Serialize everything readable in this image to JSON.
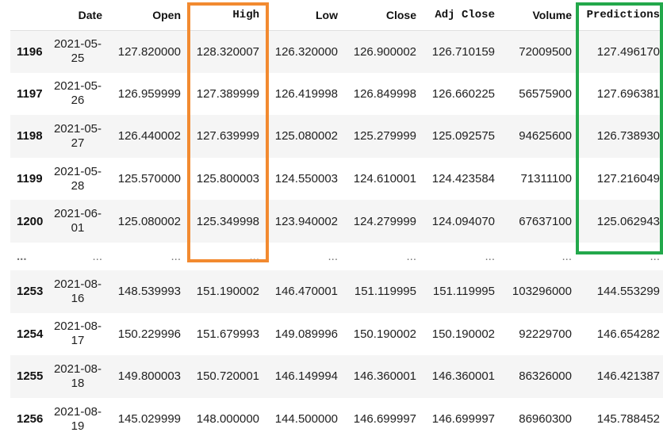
{
  "table": {
    "columns": [
      "Date",
      "Open",
      "High",
      "Low",
      "Close",
      "Adj Close",
      "Volume",
      "Predictions"
    ],
    "rows": [
      {
        "index": "1196",
        "date": "2021-05-25",
        "open": "127.820000",
        "high": "128.320007",
        "low": "126.320000",
        "close": "126.900002",
        "adj_close": "126.710159",
        "volume": "72009500",
        "predictions": "127.496170"
      },
      {
        "index": "1197",
        "date": "2021-05-26",
        "open": "126.959999",
        "high": "127.389999",
        "low": "126.419998",
        "close": "126.849998",
        "adj_close": "126.660225",
        "volume": "56575900",
        "predictions": "127.696381"
      },
      {
        "index": "1198",
        "date": "2021-05-27",
        "open": "126.440002",
        "high": "127.639999",
        "low": "125.080002",
        "close": "125.279999",
        "adj_close": "125.092575",
        "volume": "94625600",
        "predictions": "126.738930"
      },
      {
        "index": "1199",
        "date": "2021-05-28",
        "open": "125.570000",
        "high": "125.800003",
        "low": "124.550003",
        "close": "124.610001",
        "adj_close": "124.423584",
        "volume": "71311100",
        "predictions": "127.216049"
      },
      {
        "index": "1200",
        "date": "2021-06-01",
        "open": "125.080002",
        "high": "125.349998",
        "low": "123.940002",
        "close": "124.279999",
        "adj_close": "124.094070",
        "volume": "67637100",
        "predictions": "125.062943"
      },
      {
        "index": "1253",
        "date": "2021-08-16",
        "open": "148.539993",
        "high": "151.190002",
        "low": "146.470001",
        "close": "151.119995",
        "adj_close": "151.119995",
        "volume": "103296000",
        "predictions": "144.553299"
      },
      {
        "index": "1254",
        "date": "2021-08-17",
        "open": "150.229996",
        "high": "151.679993",
        "low": "149.089996",
        "close": "150.190002",
        "adj_close": "150.190002",
        "volume": "92229700",
        "predictions": "146.654282"
      },
      {
        "index": "1255",
        "date": "2021-08-18",
        "open": "149.800003",
        "high": "150.720001",
        "low": "146.149994",
        "close": "146.360001",
        "adj_close": "146.360001",
        "volume": "86326000",
        "predictions": "146.421387"
      },
      {
        "index": "1256",
        "date": "2021-08-19",
        "open": "145.029999",
        "high": "148.000000",
        "low": "144.500000",
        "close": "146.699997",
        "adj_close": "146.699997",
        "volume": "86960300",
        "predictions": "145.788452"
      }
    ],
    "ellipsis": "..."
  },
  "highlights": {
    "high_column_color": "#f28a30",
    "predictions_column_color": "#23a84b"
  }
}
